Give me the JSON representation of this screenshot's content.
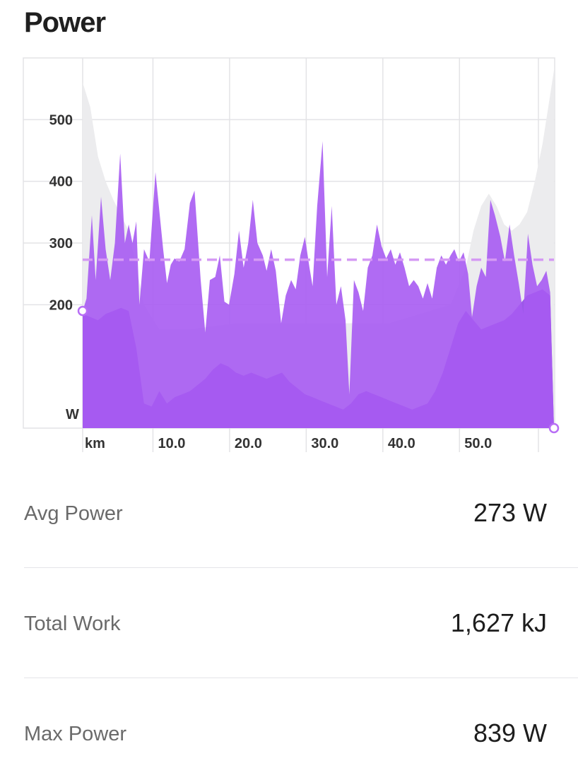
{
  "header": {
    "title": "Power"
  },
  "chart_data": {
    "type": "area",
    "title": "",
    "x_unit": "km",
    "y_unit": "W",
    "xlim": [
      0,
      61.5
    ],
    "ylim": [
      0,
      600
    ],
    "x_ticks": [
      10.0,
      20.0,
      30.0,
      40.0,
      50.0
    ],
    "x_tick_labels": [
      "10.0",
      "20.0",
      "30.0",
      "40.0",
      "50.0"
    ],
    "y_ticks": [
      200,
      300,
      400,
      500
    ],
    "y_tick_labels": [
      "200",
      "300",
      "400",
      "500"
    ],
    "grid": true,
    "average_line": 273,
    "colors": {
      "power": "#a75bf2",
      "power_dark": "#9b58e8",
      "secondary": "#e6e6e9",
      "average_line": "#d59af4",
      "marker": "#b86ef5"
    },
    "series": [
      {
        "values_xy": [
          [
            0,
            190
          ],
          [
            0.5,
            210
          ],
          [
            1.2,
            345
          ],
          [
            1.7,
            240
          ],
          [
            2.4,
            375
          ],
          [
            3.0,
            290
          ],
          [
            3.6,
            240
          ],
          [
            4.2,
            300
          ],
          [
            4.9,
            445
          ],
          [
            5.5,
            300
          ],
          [
            6.0,
            330
          ],
          [
            6.5,
            300
          ],
          [
            7.0,
            335
          ],
          [
            7.4,
            200
          ],
          [
            8.0,
            290
          ],
          [
            8.7,
            270
          ],
          [
            9.5,
            415
          ],
          [
            10.5,
            290
          ],
          [
            11.0,
            235
          ],
          [
            11.5,
            265
          ],
          [
            12.0,
            275
          ],
          [
            12.6,
            270
          ],
          [
            13.3,
            290
          ],
          [
            14.0,
            365
          ],
          [
            14.6,
            385
          ],
          [
            15.4,
            240
          ],
          [
            16.0,
            155
          ],
          [
            16.6,
            240
          ],
          [
            17.3,
            245
          ],
          [
            17.9,
            280
          ],
          [
            18.5,
            205
          ],
          [
            19.1,
            200
          ],
          [
            19.8,
            250
          ],
          [
            20.4,
            320
          ],
          [
            21.0,
            260
          ],
          [
            21.6,
            300
          ],
          [
            22.2,
            370
          ],
          [
            22.8,
            300
          ],
          [
            23.5,
            280
          ],
          [
            24.0,
            255
          ],
          [
            24.6,
            290
          ],
          [
            25.2,
            255
          ],
          [
            25.9,
            170
          ],
          [
            26.5,
            215
          ],
          [
            27.2,
            240
          ],
          [
            27.8,
            225
          ],
          [
            28.4,
            280
          ],
          [
            29.0,
            310
          ],
          [
            29.6,
            260
          ],
          [
            30.0,
            230
          ],
          [
            30.6,
            360
          ],
          [
            31.3,
            465
          ],
          [
            31.9,
            245
          ],
          [
            32.5,
            360
          ],
          [
            33.1,
            200
          ],
          [
            33.7,
            230
          ],
          [
            34.3,
            175
          ],
          [
            34.8,
            55
          ],
          [
            35.4,
            240
          ],
          [
            36.0,
            220
          ],
          [
            36.6,
            190
          ],
          [
            37.2,
            260
          ],
          [
            37.8,
            280
          ],
          [
            38.4,
            330
          ],
          [
            39.0,
            295
          ],
          [
            39.6,
            275
          ],
          [
            40.2,
            290
          ],
          [
            40.8,
            265
          ],
          [
            41.4,
            285
          ],
          [
            42.0,
            260
          ],
          [
            42.6,
            230
          ],
          [
            43.2,
            240
          ],
          [
            43.8,
            230
          ],
          [
            44.4,
            210
          ],
          [
            45.0,
            235
          ],
          [
            45.6,
            210
          ],
          [
            46.2,
            260
          ],
          [
            46.8,
            280
          ],
          [
            47.4,
            265
          ],
          [
            48.0,
            280
          ],
          [
            48.5,
            290
          ],
          [
            49.1,
            270
          ],
          [
            49.7,
            285
          ],
          [
            50.3,
            250
          ],
          [
            50.8,
            180
          ],
          [
            51.4,
            230
          ],
          [
            52.0,
            260
          ],
          [
            52.6,
            245
          ],
          [
            53.2,
            370
          ],
          [
            53.8,
            345
          ],
          [
            54.5,
            310
          ],
          [
            55.1,
            270
          ],
          [
            55.7,
            330
          ],
          [
            56.3,
            280
          ],
          [
            56.9,
            235
          ],
          [
            57.5,
            185
          ],
          [
            58.1,
            315
          ],
          [
            58.7,
            265
          ],
          [
            59.3,
            230
          ],
          [
            59.9,
            240
          ],
          [
            60.5,
            255
          ],
          [
            61.0,
            220
          ],
          [
            61.5,
            0
          ]
        ]
      }
    ]
  },
  "stats": [
    {
      "label": "Avg Power",
      "value": "273 W"
    },
    {
      "label": "Total Work",
      "value": "1,627 kJ"
    },
    {
      "label": "Max Power",
      "value": "839 W"
    }
  ]
}
